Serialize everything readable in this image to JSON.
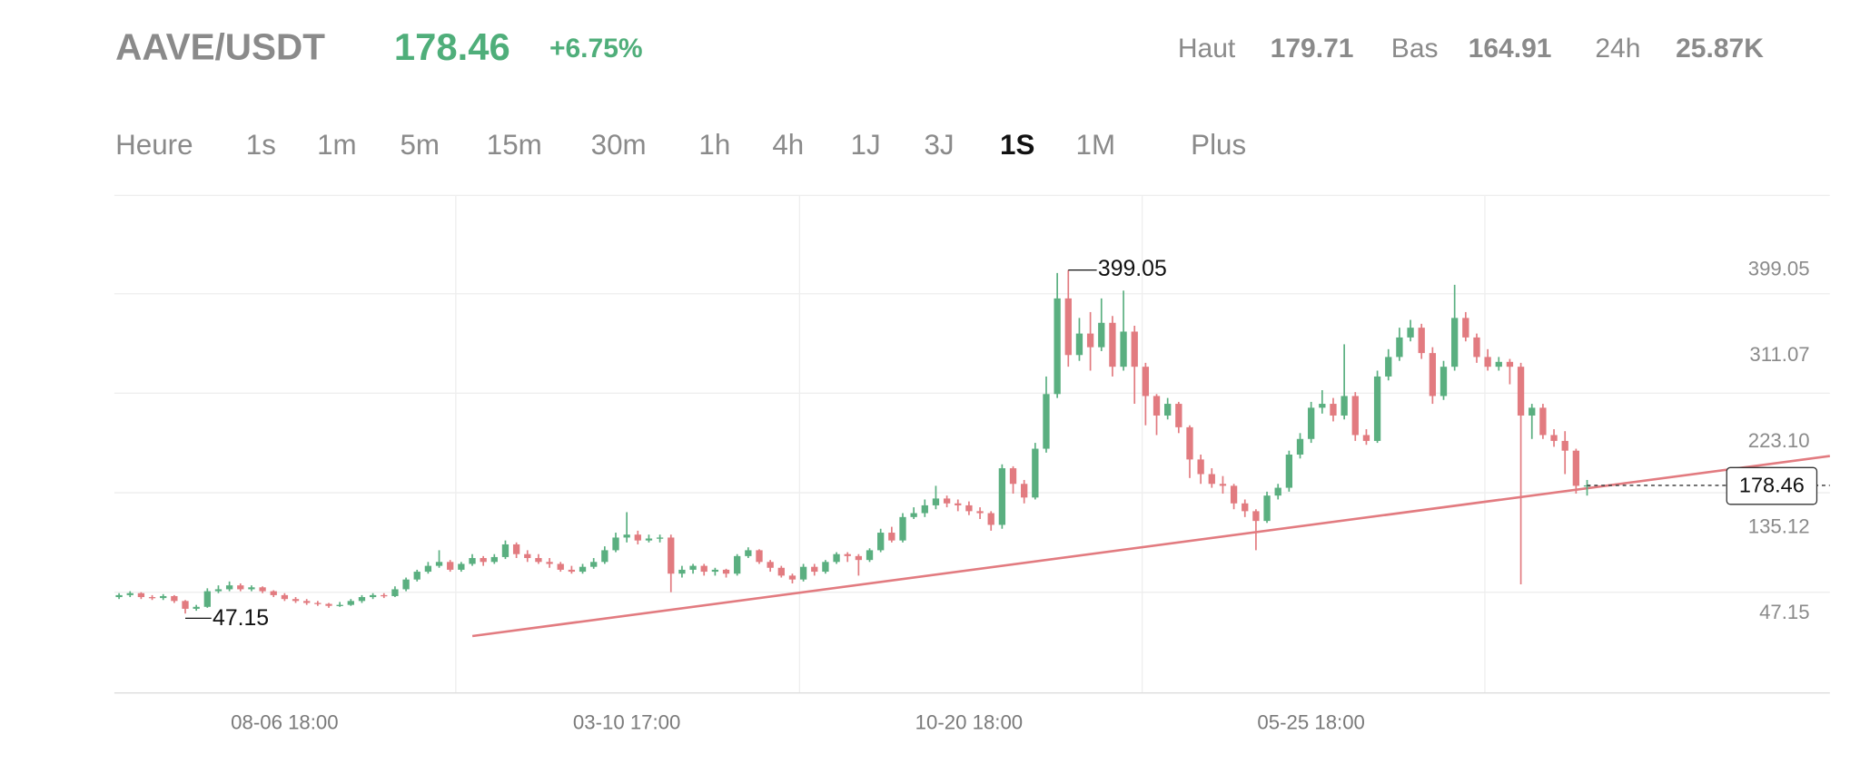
{
  "header": {
    "pair": "AAVE/USDT",
    "price": "178.46",
    "change": "+6.75%",
    "stats": [
      {
        "label": "Haut",
        "value": "179.71"
      },
      {
        "label": "Bas",
        "value": "164.91"
      },
      {
        "label": "24h",
        "value": "25.87K"
      }
    ]
  },
  "tabs": [
    "Heure",
    "1s",
    "1m",
    "5m",
    "15m",
    "30m",
    "1h",
    "4h",
    "1J",
    "3J",
    "1S",
    "1M",
    "Plus"
  ],
  "chart_data": {
    "type": "candlestick",
    "up_color": "#5aaf80",
    "down_color": "#e27b80",
    "ylim": [
      -34.2,
      475.5
    ],
    "yticks": [
      47.15,
      135.12,
      {
        "value": 223.1,
        "label": "223.10"
      },
      311.07,
      399.05
    ],
    "categories": [
      null,
      null,
      null,
      null,
      null,
      null,
      null,
      null,
      null,
      null,
      null,
      null,
      null,
      null,
      null,
      "08-06 18:00",
      null,
      null,
      null,
      null,
      null,
      null,
      null,
      null,
      null,
      null,
      null,
      null,
      null,
      null,
      null,
      null,
      null,
      null,
      null,
      null,
      null,
      null,
      null,
      null,
      null,
      null,
      null,
      null,
      null,
      null,
      "03-10 17:00",
      null,
      null,
      null,
      null,
      null,
      null,
      null,
      null,
      null,
      null,
      null,
      null,
      null,
      null,
      null,
      null,
      null,
      null,
      null,
      null,
      null,
      null,
      null,
      null,
      null,
      null,
      null,
      null,
      null,
      null,
      "10-20 18:00",
      null,
      null,
      null,
      null,
      null,
      null,
      null,
      null,
      null,
      null,
      null,
      null,
      null,
      null,
      null,
      null,
      null,
      null,
      null,
      null,
      null,
      null,
      null,
      null,
      null,
      null,
      null,
      null,
      null,
      null,
      "05-25 18:00",
      null,
      null,
      null,
      null,
      null,
      null,
      null,
      null,
      null,
      null,
      null,
      null,
      null,
      null,
      null,
      null,
      null,
      null,
      null,
      null,
      null,
      null,
      null,
      null,
      null
    ],
    "open": [
      64,
      66,
      68,
      64,
      63,
      65,
      60,
      52,
      54,
      70,
      72,
      76,
      72,
      74,
      70,
      66,
      62,
      60,
      58,
      57,
      55,
      56,
      60,
      64,
      66,
      65,
      72,
      82,
      90,
      96,
      100,
      92,
      98,
      104,
      100,
      105,
      118,
      108,
      104,
      100,
      98,
      92,
      90,
      95,
      100,
      112,
      125,
      128,
      122,
      124,
      125,
      88,
      92,
      96,
      90,
      92,
      88,
      106,
      112,
      100,
      94,
      86,
      82,
      95,
      90,
      100,
      108,
      106,
      102,
      112,
      130,
      122,
      146,
      150,
      158,
      165,
      160,
      158,
      152,
      150,
      138,
      196,
      180,
      166,
      216,
      272,
      370,
      312,
      334,
      320,
      345,
      300,
      336,
      300,
      270,
      250,
      262,
      238,
      205,
      190,
      180,
      178,
      160,
      152,
      142,
      168,
      176,
      210,
      226,
      258,
      262,
      250,
      270,
      230,
      224,
      290,
      310,
      330,
      340,
      314,
      270,
      300,
      350,
      330,
      310,
      300,
      305,
      300,
      250,
      258,
      230,
      224,
      214,
      178
    ],
    "high": [
      68,
      70,
      69,
      66,
      67,
      66,
      61,
      56,
      73,
      76,
      80,
      78,
      76,
      75,
      71,
      68,
      64,
      62,
      60,
      58,
      59,
      62,
      66,
      68,
      68,
      75,
      84,
      92,
      100,
      112,
      102,
      100,
      108,
      106,
      108,
      122,
      120,
      112,
      108,
      104,
      100,
      96,
      98,
      104,
      116,
      130,
      151,
      132,
      128,
      128,
      128,
      96,
      98,
      98,
      94,
      93,
      108,
      115,
      113,
      102,
      96,
      88,
      98,
      98,
      102,
      110,
      110,
      108,
      114,
      134,
      136,
      150,
      156,
      164,
      178,
      168,
      164,
      162,
      156,
      152,
      200,
      198,
      184,
      222,
      290,
      396,
      399.05,
      350,
      356,
      370,
      352,
      378,
      342,
      304,
      272,
      268,
      264,
      240,
      210,
      196,
      188,
      180,
      164,
      154,
      172,
      180,
      214,
      232,
      264,
      276,
      268,
      323,
      274,
      236,
      296,
      318,
      340,
      348,
      344,
      320,
      306,
      384,
      356,
      334,
      318,
      310,
      308,
      304,
      262,
      262,
      236,
      234,
      216,
      184
    ],
    "low": [
      62,
      64,
      62,
      61,
      61,
      58,
      47.15,
      50,
      53,
      68,
      70,
      70,
      70,
      68,
      64,
      60,
      58,
      56,
      55,
      53,
      54,
      55,
      58,
      62,
      63,
      64,
      70,
      80,
      88,
      94,
      90,
      90,
      96,
      96,
      98,
      103,
      104,
      100,
      98,
      94,
      90,
      88,
      88,
      93,
      98,
      110,
      120,
      118,
      120,
      120,
      69,
      84,
      88,
      86,
      86,
      84,
      86,
      104,
      98,
      90,
      84,
      78,
      80,
      86,
      88,
      98,
      100,
      86,
      100,
      110,
      120,
      120,
      144,
      146,
      154,
      156,
      152,
      148,
      144,
      132,
      134,
      170,
      160,
      164,
      212,
      268,
      300,
      306,
      296,
      316,
      290,
      296,
      262,
      240,
      230,
      246,
      232,
      186,
      180,
      176,
      170,
      154,
      146,
      112,
      140,
      164,
      172,
      206,
      222,
      252,
      244,
      246,
      224,
      220,
      222,
      286,
      306,
      326,
      308,
      262,
      266,
      296,
      326,
      304,
      296,
      296,
      282,
      77,
      226,
      226,
      218,
      190,
      170,
      168
    ],
    "close": [
      66,
      68,
      64,
      63,
      65,
      60,
      52,
      54,
      70,
      72,
      76,
      72,
      74,
      70,
      66,
      62,
      60,
      58,
      57,
      55,
      56,
      60,
      64,
      66,
      65,
      72,
      82,
      90,
      96,
      100,
      92,
      98,
      104,
      100,
      105,
      118,
      108,
      104,
      100,
      98,
      92,
      90,
      95,
      100,
      112,
      125,
      128,
      122,
      124,
      125,
      88,
      92,
      96,
      90,
      92,
      88,
      106,
      112,
      100,
      94,
      86,
      82,
      95,
      90,
      100,
      108,
      106,
      102,
      112,
      130,
      122,
      146,
      150,
      158,
      165,
      160,
      158,
      152,
      150,
      138,
      196,
      180,
      166,
      216,
      272,
      370,
      312,
      334,
      320,
      345,
      300,
      336,
      300,
      270,
      250,
      262,
      238,
      205,
      190,
      180,
      178,
      160,
      152,
      142,
      168,
      176,
      210,
      226,
      258,
      262,
      250,
      270,
      230,
      224,
      290,
      310,
      330,
      340,
      314,
      270,
      300,
      350,
      330,
      310,
      300,
      305,
      300,
      250,
      258,
      230,
      224,
      214,
      178,
      178.46
    ]
  }
}
